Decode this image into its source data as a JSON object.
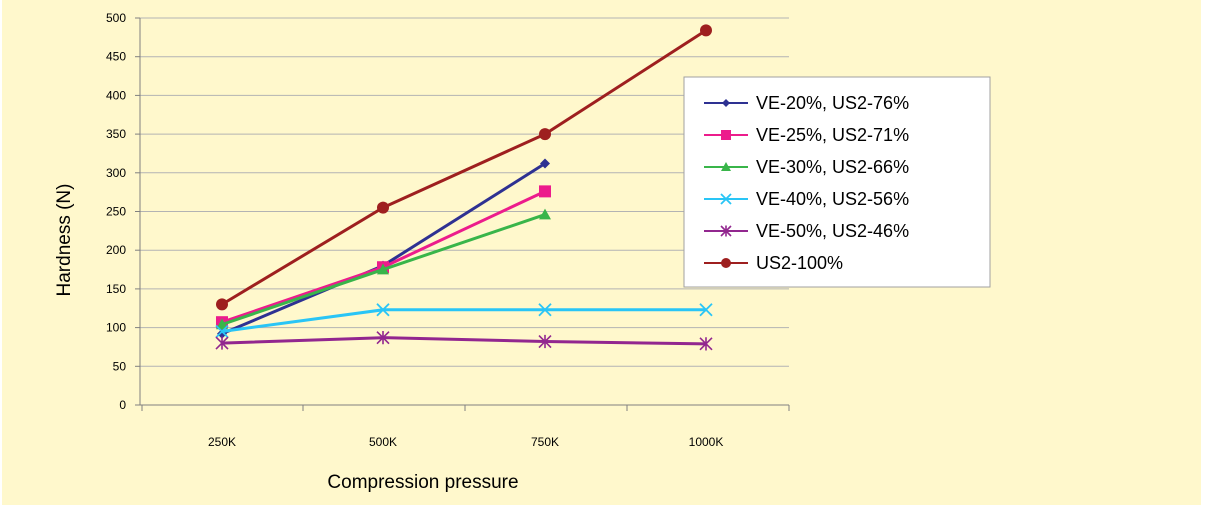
{
  "chart_data": {
    "type": "line",
    "title": "",
    "xlabel": "Compression pressure",
    "ylabel": "Hardness (N)",
    "categories": [
      "250K",
      "500K",
      "750K",
      "1000K"
    ],
    "ylim": [
      0,
      500
    ],
    "yticks": [
      0,
      50,
      100,
      150,
      200,
      250,
      300,
      350,
      400,
      450,
      500
    ],
    "grid": true,
    "legend_position": "right",
    "background_color": "#fff8cc",
    "series": [
      {
        "name": "VE-20%, US2-76%",
        "color": "#2e3192",
        "marker": "diamond",
        "values": [
          92,
          180,
          312,
          null
        ]
      },
      {
        "name": "VE-25%, US2-71%",
        "color": "#ec1c8c",
        "marker": "square",
        "values": [
          107,
          178,
          276,
          null
        ]
      },
      {
        "name": "VE-30%, US2-66%",
        "color": "#39b54a",
        "marker": "triangle",
        "values": [
          104,
          175,
          246,
          null
        ]
      },
      {
        "name": "VE-40%, US2-56%",
        "color": "#29c5f6",
        "marker": "x",
        "values": [
          95,
          123,
          123,
          123
        ]
      },
      {
        "name": "VE-50%, US2-46%",
        "color": "#92278f",
        "marker": "star",
        "values": [
          80,
          87,
          82,
          79
        ]
      },
      {
        "name": "US2-100%",
        "color": "#9e1f1f",
        "marker": "circle",
        "values": [
          130,
          255,
          350,
          484
        ]
      }
    ]
  }
}
